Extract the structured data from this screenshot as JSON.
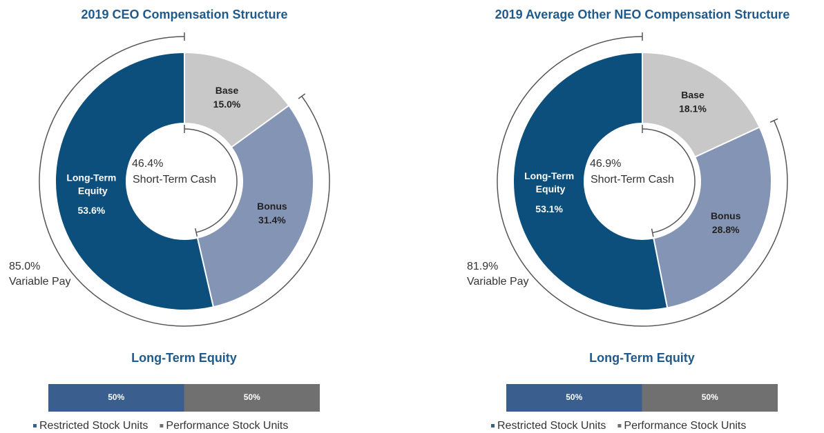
{
  "chart_data": [
    {
      "type": "donut",
      "title": "2019 CEO Compensation Structure",
      "categories": [
        "Base",
        "Bonus",
        "Long-Term Equity"
      ],
      "values": [
        15.0,
        31.4,
        53.6
      ],
      "value_labels": [
        "15.0%",
        "31.4%",
        "53.6%"
      ],
      "colors": [
        "#c8c8c8",
        "#8494b4",
        "#0d4f7c"
      ],
      "annotations": [
        {
          "value": 46.4,
          "label": "46.4%",
          "text": "Short-Term Cash"
        },
        {
          "value": 85.0,
          "label": "85.0%",
          "text": "Variable Pay"
        }
      ]
    },
    {
      "type": "donut",
      "title": "2019 Average Other NEO Compensation Structure",
      "categories": [
        "Base",
        "Bonus",
        "Long-Term Equity"
      ],
      "values": [
        18.1,
        28.8,
        53.1
      ],
      "value_labels": [
        "18.1%",
        "28.8%",
        "53.1%"
      ],
      "colors": [
        "#c8c8c8",
        "#8494b4",
        "#0d4f7c"
      ],
      "annotations": [
        {
          "value": 46.9,
          "label": "46.9%",
          "text": "Short-Term Cash"
        },
        {
          "value": 81.9,
          "label": "81.9%",
          "text": "Variable Pay"
        }
      ]
    },
    {
      "type": "stacked-bar",
      "title": "Long-Term Equity",
      "series": [
        {
          "name": "Restricted Stock Units",
          "color": "#3a5f8f",
          "values": [
            50
          ],
          "value_labels": [
            "50%"
          ]
        },
        {
          "name": "Performance Stock Units",
          "color": "#707070",
          "values": [
            50
          ],
          "value_labels": [
            "50%"
          ]
        }
      ]
    },
    {
      "type": "stacked-bar",
      "title": "Long-Term Equity",
      "series": [
        {
          "name": "Restricted Stock Units",
          "color": "#3a5f8f",
          "values": [
            50
          ],
          "value_labels": [
            "50%"
          ]
        },
        {
          "name": "Performance Stock Units",
          "color": "#707070",
          "values": [
            50
          ],
          "value_labels": [
            "50%"
          ]
        }
      ]
    }
  ]
}
